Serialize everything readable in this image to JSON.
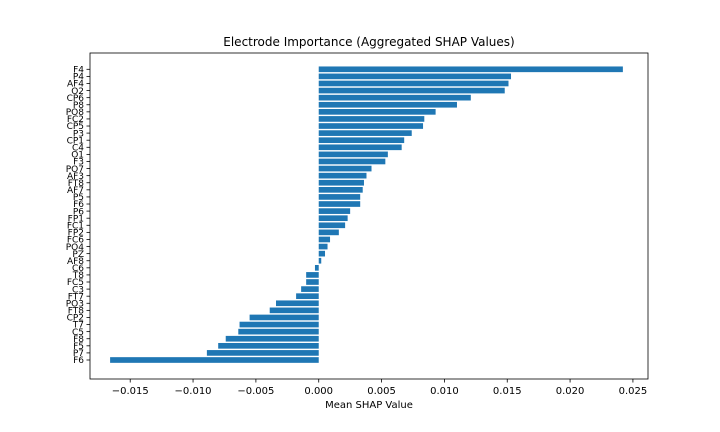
{
  "chart_data": {
    "type": "bar",
    "orientation": "horizontal",
    "title": "Electrode Importance (Aggregated SHAP Values)",
    "xlabel": "Mean SHAP Value",
    "ylabel": "",
    "xlim": [
      -0.0182,
      0.0262
    ],
    "xticks": [
      -0.015,
      -0.01,
      -0.005,
      0.0,
      0.005,
      0.01,
      0.015,
      0.02,
      0.025
    ],
    "xtick_labels": [
      "−0.015",
      "−0.010",
      "−0.005",
      "0.000",
      "0.005",
      "0.010",
      "0.015",
      "0.020",
      "0.025"
    ],
    "grid": false,
    "bar_color": "#1f77b4",
    "categories": [
      "F4",
      "P4",
      "AF4",
      "O2",
      "CP6",
      "P8",
      "PO8",
      "FC2",
      "CP5",
      "P3",
      "CP1",
      "C4",
      "O1",
      "F3",
      "PO7",
      "AF3",
      "FT8",
      "AF7",
      "P5",
      "F6",
      "P6",
      "FP1",
      "FC1",
      "FP2",
      "FC6",
      "PO4",
      "PZ",
      "AF8",
      "C6",
      "T8",
      "FC5",
      "C3",
      "FT7",
      "PO3",
      "FT8",
      "CP2",
      "T7",
      "C5",
      "F8",
      "F5",
      "P7",
      "F6"
    ],
    "values": [
      0.0242,
      0.0153,
      0.0151,
      0.0148,
      0.0121,
      0.011,
      0.0093,
      0.0084,
      0.0083,
      0.0074,
      0.0068,
      0.0066,
      0.0055,
      0.0053,
      0.0042,
      0.0038,
      0.0036,
      0.0035,
      0.0033,
      0.0033,
      0.0025,
      0.0023,
      0.0021,
      0.0016,
      0.0009,
      0.0007,
      0.0005,
      0.0002,
      -0.0003,
      -0.001,
      -0.001,
      -0.0014,
      -0.0018,
      -0.0034,
      -0.0039,
      -0.0055,
      -0.0063,
      -0.0064,
      -0.0074,
      -0.008,
      -0.0089,
      -0.0166
    ]
  }
}
